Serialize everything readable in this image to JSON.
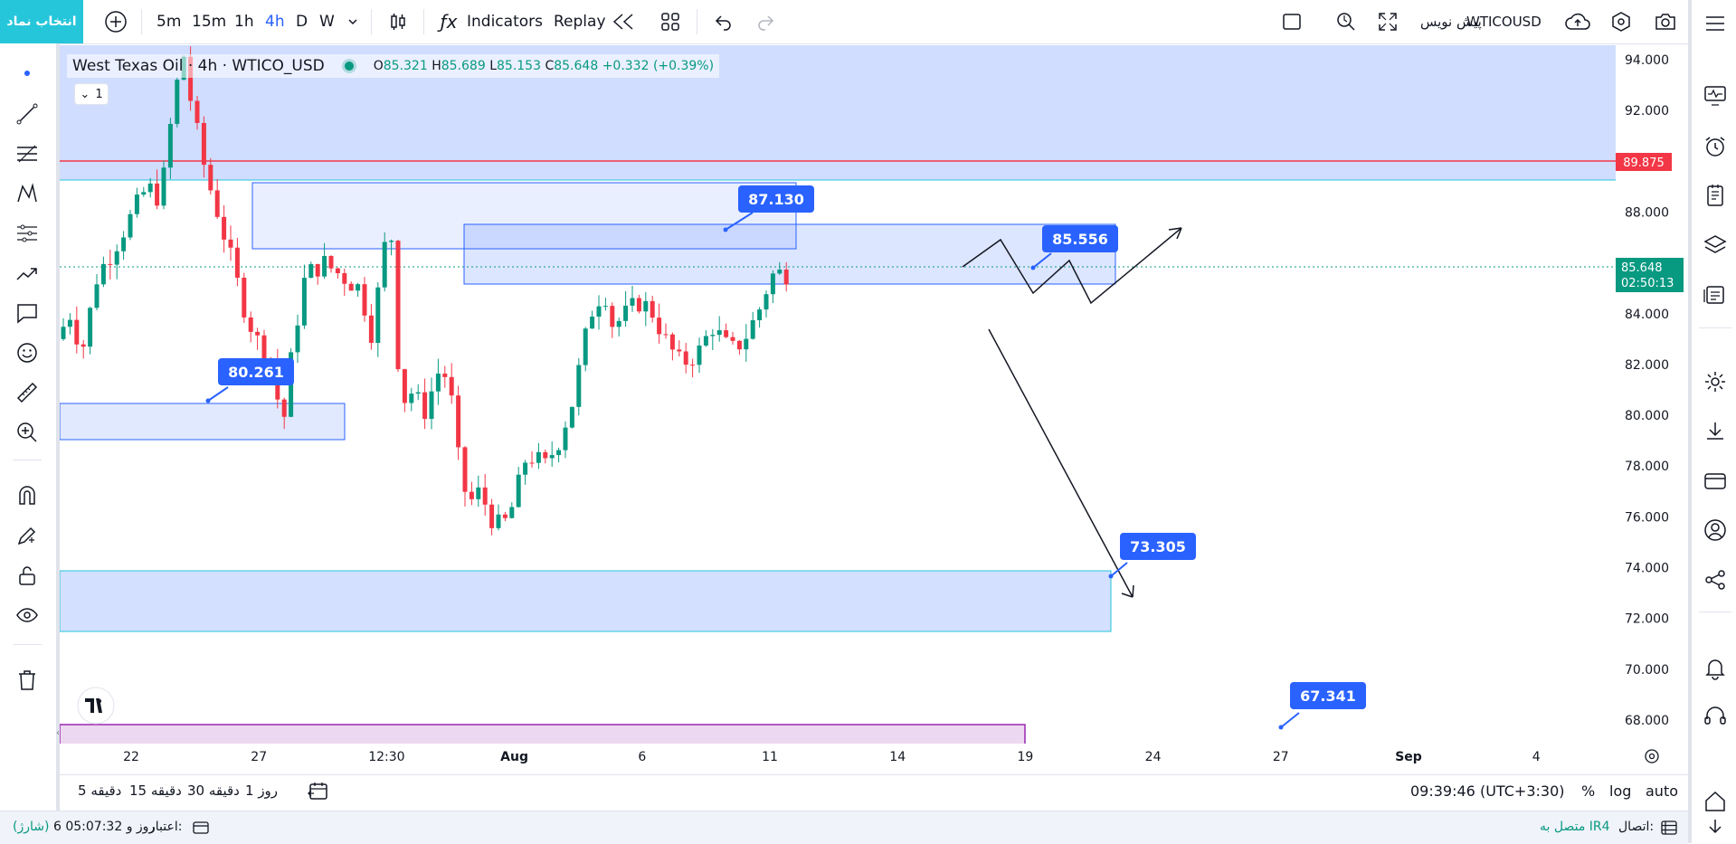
{
  "toolbar": {
    "symbol_button": "انتخاب نماد",
    "intervals": [
      "5m",
      "15m",
      "1h",
      "4h",
      "D",
      "W"
    ],
    "active_interval": "4h",
    "indicators_label": "Indicators",
    "replay_label": "Replay",
    "publish_label": "پیش نویس",
    "symbol_code": "WTICOUSD"
  },
  "legend": {
    "title": "West Texas Oil · 4h · WTICO_USD",
    "open_label": "O",
    "open": "85.321",
    "high_label": "H",
    "high": "85.689",
    "low_label": "L",
    "low": "85.153",
    "close_label": "C",
    "close": "85.648",
    "change": "+0.332 (+0.39%)",
    "collapse_count": "1"
  },
  "chart_data": {
    "type": "candlestick",
    "price_axis_ticks": [
      "94.000",
      "92.000",
      "90.000",
      "88.000",
      "86.000",
      "84.000",
      "82.000",
      "80.000",
      "78.000",
      "76.000",
      "74.000",
      "72.000",
      "70.000",
      "68.000"
    ],
    "time_axis_ticks": [
      "22",
      "27",
      "12:30",
      "Aug",
      "6",
      "11",
      "14",
      "19",
      "24",
      "27",
      "Sep",
      "4"
    ],
    "ylim": [
      67,
      94.5
    ],
    "current_price": "85.648",
    "countdown": "02:50:13",
    "alert_line_price": "89.875",
    "price_labels": [
      "87.130",
      "85.556",
      "80.261",
      "73.305",
      "67.341"
    ],
    "colors": {
      "up": "#089981",
      "down": "#f23645",
      "zone": "#2962ff",
      "alert": "#f23645",
      "current": "#089981"
    }
  },
  "bottom": {
    "timeframes": [
      "5 دقیقه",
      "15 دقیقه",
      "30 دقیقه",
      "1 روز"
    ],
    "clock": "09:39:46 (UTC+3:30)",
    "percent": "%",
    "log": "log",
    "auto": "auto"
  },
  "status": {
    "connection_label": "اتصال:",
    "connection_value": "متصل به IR4",
    "credit_label": "اعتبار:",
    "credit_value": "6 روز و 05:07:32",
    "charge": "(شارژ)"
  }
}
